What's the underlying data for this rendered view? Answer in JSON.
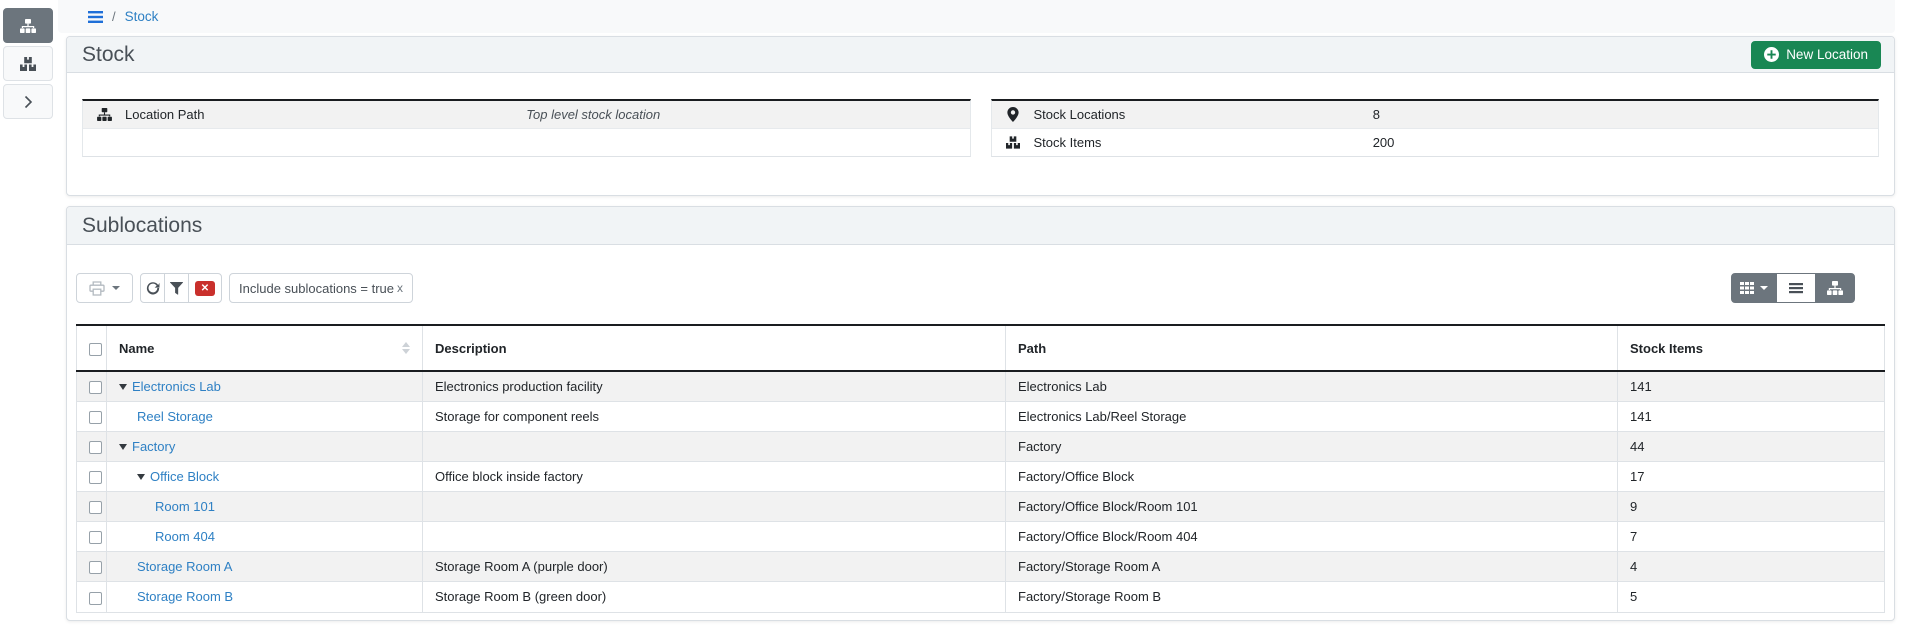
{
  "colors": {
    "link_blue": "#2e80c4",
    "success_green": "#198754",
    "danger_red": "#c9302c",
    "secondary_gray": "#6c757d"
  },
  "sidebar": {
    "buttons": [
      {
        "icon": "sitemap-icon",
        "active": true
      },
      {
        "icon": "boxes-icon",
        "active": false
      },
      {
        "icon": "chevron-right-icon",
        "active": false
      }
    ]
  },
  "breadcrumb": {
    "separator": "/",
    "current": "Stock"
  },
  "stock_card": {
    "title": "Stock",
    "new_location_button": "New Location",
    "location_path": {
      "label": "Location Path",
      "value": "Top level stock location"
    },
    "stats": [
      {
        "label": "Stock Locations",
        "value": "8"
      },
      {
        "label": "Stock Items",
        "value": "200"
      }
    ]
  },
  "sublocations_card": {
    "title": "Sublocations",
    "filter_chip": {
      "text": "Include sublocations = true",
      "close": "x"
    },
    "table": {
      "columns": [
        "Name",
        "Description",
        "Path",
        "Stock Items"
      ],
      "rows": [
        {
          "name": "Electronics Lab",
          "level": 0,
          "expandable": true,
          "description": "Electronics production facility",
          "path": "Electronics Lab",
          "stock_items": "141"
        },
        {
          "name": "Reel Storage",
          "level": 1,
          "expandable": false,
          "description": "Storage for component reels",
          "path": "Electronics Lab/Reel Storage",
          "stock_items": "141"
        },
        {
          "name": "Factory",
          "level": 0,
          "expandable": true,
          "description": "",
          "path": "Factory",
          "stock_items": "44"
        },
        {
          "name": "Office Block",
          "level": 1,
          "expandable": true,
          "description": "Office block inside factory",
          "path": "Factory/Office Block",
          "stock_items": "17"
        },
        {
          "name": "Room 101",
          "level": 2,
          "expandable": false,
          "description": "",
          "path": "Factory/Office Block/Room 101",
          "stock_items": "9"
        },
        {
          "name": "Room 404",
          "level": 2,
          "expandable": false,
          "description": "",
          "path": "Factory/Office Block/Room 404",
          "stock_items": "7"
        },
        {
          "name": "Storage Room A",
          "level": 1,
          "expandable": false,
          "description": "Storage Room A (purple door)",
          "path": "Factory/Storage Room A",
          "stock_items": "4"
        },
        {
          "name": "Storage Room B",
          "level": 1,
          "expandable": false,
          "description": "Storage Room B (green door)",
          "path": "Factory/Storage Room B",
          "stock_items": "5"
        }
      ]
    }
  }
}
